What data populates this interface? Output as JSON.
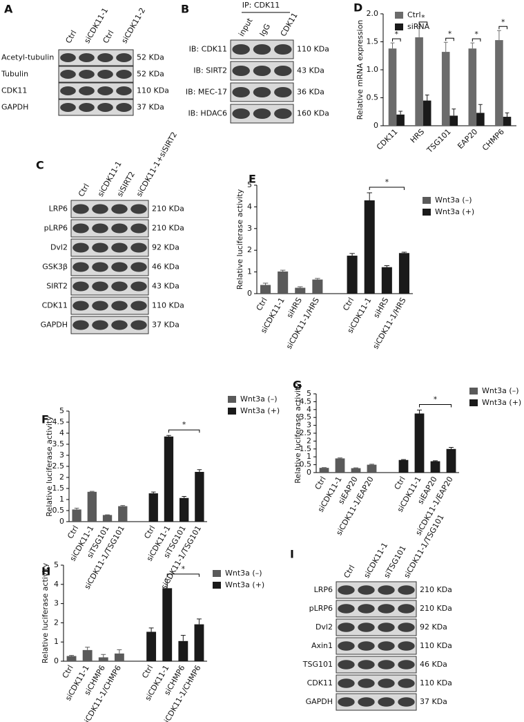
{
  "panels": {
    "A": {
      "letter": "A",
      "lanes": [
        "Ctrl",
        "siCDK11-1",
        "Ctrl",
        "siCDK11-2"
      ],
      "rows": [
        [
          "Acetyl-tubulin",
          "52 KDa"
        ],
        [
          "Tubulin",
          "52 KDa"
        ],
        [
          "CDK11",
          "110 KDa"
        ],
        [
          "GAPDH",
          "37 KDa"
        ]
      ]
    },
    "B": {
      "letter": "B",
      "header": "IP: CDK11",
      "lanes": [
        "input",
        "IgG",
        "CDK11"
      ],
      "rows": [
        [
          "IB: CDK11",
          "110 KDa"
        ],
        [
          "IB: SIRT2",
          "43 KDa"
        ],
        [
          "IB: MEC-17",
          "36 KDa"
        ],
        [
          "IB: HDAC6",
          "160 KDa"
        ]
      ]
    },
    "C": {
      "letter": "C",
      "lanes": [
        "Ctrl",
        "siCDK11-1",
        "siSIRT2",
        "siCDK11-1+siSIRT2"
      ],
      "rows": [
        [
          "LRP6",
          "210 KDa"
        ],
        [
          "pLRP6",
          "210 KDa"
        ],
        [
          "Dvl2",
          "92 KDa"
        ],
        [
          "GSK3β",
          "46 KDa"
        ],
        [
          "SIRT2",
          "43 KDa"
        ],
        [
          "CDK11",
          "110 KDa"
        ],
        [
          "GAPDH",
          "37 KDa"
        ]
      ]
    },
    "I": {
      "letter": "I",
      "lanes": [
        "Ctrl",
        "siCDK11-1",
        "siTSG101",
        "siCDK11-1/TSG101"
      ],
      "rows": [
        [
          "LRP6",
          "210 KDa"
        ],
        [
          "pLRP6",
          "210 KDa"
        ],
        [
          "Dvl2",
          "92 KDa"
        ],
        [
          "Axin1",
          "110 KDa"
        ],
        [
          "TSG101",
          "46 KDa"
        ],
        [
          "CDK11",
          "110 KDa"
        ],
        [
          "GAPDH",
          "37 KDa"
        ]
      ]
    }
  },
  "chart_data": [
    {
      "type": "bar",
      "panel": "D",
      "y_label": "Relative mRNA expression",
      "categories": [
        "CDK11",
        "HRS",
        "TSG101",
        "EAP20",
        "CHMP6"
      ],
      "series": [
        {
          "name": "Ctrl",
          "color": "#6b6b6b",
          "values": [
            1.38,
            1.58,
            1.32,
            1.38,
            1.53
          ],
          "errors": [
            0.1,
            0.2,
            0.17,
            0.1,
            0.17
          ]
        },
        {
          "name": "siRNA",
          "color": "#1a1a1a",
          "values": [
            0.2,
            0.45,
            0.18,
            0.23,
            0.16
          ],
          "errors": [
            0.06,
            0.1,
            0.12,
            0.15,
            0.07
          ]
        }
      ],
      "annotations": [
        "*",
        "*",
        "*",
        "*",
        "*"
      ],
      "ylim": [
        0,
        2.0
      ],
      "yticks": [
        0,
        0.5,
        {
          "value": 1.0,
          "label": "1.0"
        },
        1.5,
        {
          "value": 2.0,
          "label": "2.0"
        }
      ]
    },
    {
      "type": "bar",
      "panel": "E",
      "y_label": "Relative luciferase activity",
      "categories": [
        "Ctrl",
        "siCDK11-1",
        "siHRS",
        "siCDK11-1/HRS",
        "Ctrl",
        "siCDK11-1",
        "siHRS",
        "siCDK11-1/HRS"
      ],
      "series": [
        {
          "name": "Wnt3a (–)",
          "color": "#5a5a5a",
          "values": [
            0.4,
            1.02,
            0.27,
            0.65,
            null,
            null,
            null,
            null
          ],
          "errors": [
            0.08,
            0.06,
            0.05,
            0.05,
            null,
            null,
            null,
            null
          ]
        },
        {
          "name": "Wnt3a (+)",
          "color": "#1a1a1a",
          "values": [
            null,
            null,
            null,
            null,
            1.75,
            4.3,
            1.22,
            1.87
          ],
          "errors": [
            null,
            null,
            null,
            null,
            0.1,
            0.35,
            0.07,
            0.04
          ]
        }
      ],
      "annotation": "*",
      "ylim": [
        0,
        5
      ],
      "yticks": [
        0,
        1,
        2,
        3,
        4,
        5
      ]
    },
    {
      "type": "bar",
      "panel": "F",
      "y_label": "Relative luciferase activity",
      "categories": [
        "Ctrl",
        "siCDK11-1",
        "siTSG101",
        "siCDK11-1/TSG101",
        "Ctrl",
        "siCDK11-1",
        "siTSG101",
        "siCDK11-1/TSG101"
      ],
      "series": [
        {
          "name": "Wnt3a (–)",
          "color": "#5a5a5a",
          "values": [
            0.55,
            1.35,
            0.3,
            0.7,
            null,
            null,
            null,
            null
          ],
          "errors": [
            0.06,
            0.02,
            0.01,
            0.03,
            null,
            null,
            null,
            null
          ]
        },
        {
          "name": "Wnt3a (+)",
          "color": "#1a1a1a",
          "values": [
            null,
            null,
            null,
            null,
            1.28,
            3.85,
            1.07,
            2.25
          ],
          "errors": [
            null,
            null,
            null,
            null,
            0.06,
            0.05,
            0.07,
            0.1
          ]
        }
      ],
      "annotation": "*",
      "ylim": [
        0,
        5
      ],
      "yticks": [
        0,
        0.5,
        1,
        1.5,
        2,
        2.5,
        3,
        3.5,
        4,
        4.5,
        5
      ]
    },
    {
      "type": "bar",
      "panel": "G",
      "y_label": "Relative luciferase activity",
      "categories": [
        "Ctrl",
        "siCDK11-1",
        "siEAP20",
        "siCDK11-1/EAP20",
        "Ctrl",
        "siCDK11-1",
        "siEAP20",
        "siCDK11-1/EAP20"
      ],
      "series": [
        {
          "name": "Wnt3a (–)",
          "color": "#5a5a5a",
          "values": [
            0.3,
            0.9,
            0.28,
            0.5,
            null,
            null,
            null,
            null
          ],
          "errors": [
            0.02,
            0.03,
            0.02,
            0.03,
            null,
            null,
            null,
            null
          ]
        },
        {
          "name": "Wnt3a (+)",
          "color": "#1a1a1a",
          "values": [
            null,
            null,
            null,
            null,
            0.8,
            3.75,
            0.72,
            1.5
          ],
          "errors": [
            null,
            null,
            null,
            null,
            0.03,
            0.22,
            0.03,
            0.1
          ]
        }
      ],
      "annotation": "*",
      "ylim": [
        0,
        5
      ],
      "yticks": [
        0,
        0.5,
        1,
        1.5,
        2,
        2.5,
        3,
        3.5,
        4,
        4.5,
        5
      ]
    },
    {
      "type": "bar",
      "panel": "H",
      "y_label": "Relative luciferase activity",
      "categories": [
        "Ctrl",
        "siCDK11-1",
        "siCHMP6",
        "siCDK11-1/CHMP6",
        "Ctrl",
        "siCDK11-1",
        "siCHMP6",
        "siCDK11-1/CHMP6"
      ],
      "series": [
        {
          "name": "Wnt3a (–)",
          "color": "#5a5a5a",
          "values": [
            0.27,
            0.58,
            0.2,
            0.4,
            null,
            null,
            null,
            null
          ],
          "errors": [
            0.03,
            0.15,
            0.15,
            0.2,
            null,
            null,
            null,
            null
          ]
        },
        {
          "name": "Wnt3a (+)",
          "color": "#1a1a1a",
          "values": [
            null,
            null,
            null,
            null,
            1.53,
            3.8,
            1.05,
            1.92
          ],
          "errors": [
            null,
            null,
            null,
            null,
            0.2,
            0.45,
            0.3,
            0.28
          ]
        }
      ],
      "annotation": "*",
      "ylim": [
        0,
        5
      ],
      "yticks": [
        0,
        1,
        2,
        3,
        4,
        5
      ]
    }
  ]
}
